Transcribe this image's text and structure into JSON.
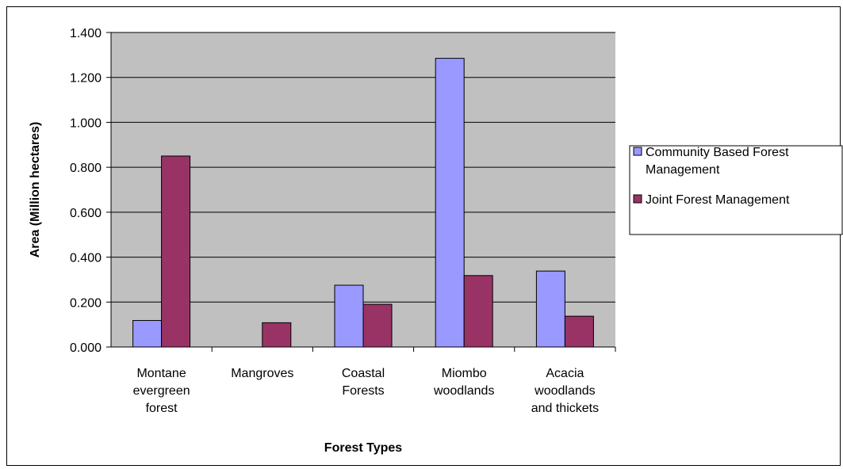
{
  "chart_data": {
    "type": "bar",
    "title": "",
    "xlabel": "Forest Types",
    "ylabel": "Area (Million hectares)",
    "ylim": [
      0,
      1.4
    ],
    "yticks": [
      "0.000",
      "0.200",
      "0.400",
      "0.600",
      "0.800",
      "1.000",
      "1.200",
      "1.400"
    ],
    "grid": true,
    "legend_position": "right",
    "categories": [
      [
        "Montane",
        "evergreen",
        "forest"
      ],
      [
        "Mangroves"
      ],
      [
        "Coastal",
        "Forests"
      ],
      [
        "Miombo",
        "woodlands"
      ],
      [
        "Acacia",
        "woodlands",
        "and thickets"
      ]
    ],
    "series": [
      {
        "name": "Community Based Forest Management",
        "name_lines": [
          "Community Based Forest",
          "Management"
        ],
        "color": "#9999ff",
        "values": [
          0.118,
          0.0,
          0.275,
          1.285,
          0.338
        ]
      },
      {
        "name": "Joint Forest Management",
        "name_lines": [
          "Joint Forest Management"
        ],
        "color": "#993366",
        "values": [
          0.85,
          0.108,
          0.19,
          0.318,
          0.137
        ]
      }
    ],
    "plot_background": "#c0c0c0"
  }
}
